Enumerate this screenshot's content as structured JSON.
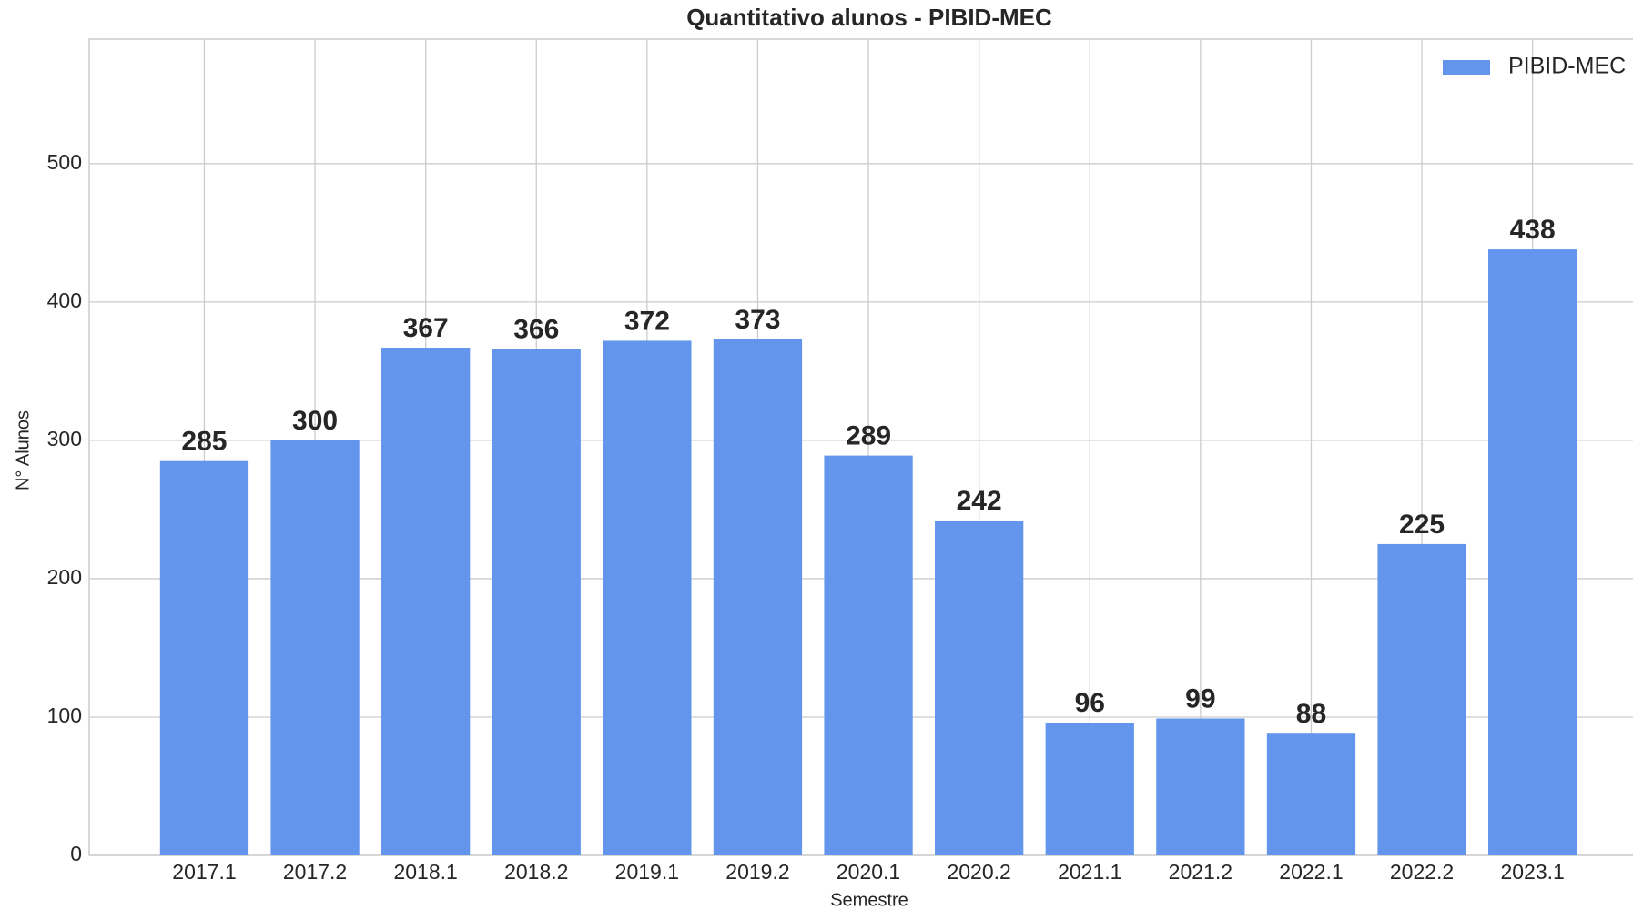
{
  "chart_data": {
    "type": "bar",
    "title": "Quantitativo alunos - PIBID-MEC",
    "x_label": "Semestre",
    "y_label": "N° Alunos",
    "categories": [
      "2017.1",
      "2017.2",
      "2018.1",
      "2018.2",
      "2019.1",
      "2019.2",
      "2020.1",
      "2020.2",
      "2021.1",
      "2021.2",
      "2022.1",
      "2022.2",
      "2023.1"
    ],
    "series": [
      {
        "name": "PIBID-MEC",
        "color": "#6495ed",
        "values": [
          285,
          300,
          367,
          366,
          372,
          373,
          289,
          242,
          96,
          99,
          88,
          225,
          438
        ]
      }
    ],
    "ylim": [
      0,
      590
    ],
    "yticks": [
      0,
      100,
      200,
      300,
      400,
      500
    ],
    "grid": true,
    "legend": "upper right"
  }
}
